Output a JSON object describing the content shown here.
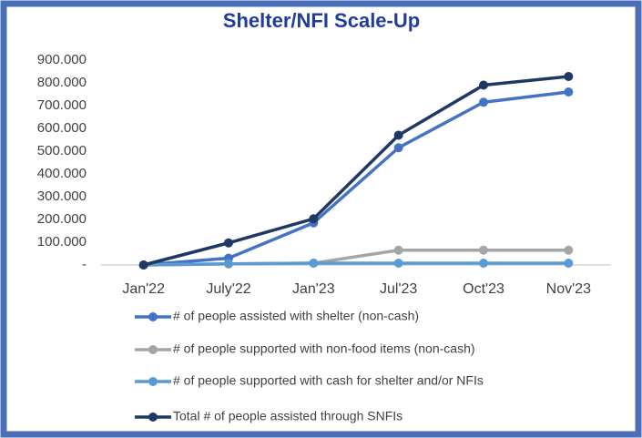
{
  "chart_data": {
    "type": "line",
    "title": "Shelter/NFI Scale-Up",
    "categories": [
      "Jan'22",
      "July'22",
      "Jan'23",
      "Jul'23",
      "Oct'23",
      "Nov'23"
    ],
    "series": [
      {
        "name": "# of people assisted with shelter (non-cash)",
        "color": "#4472c4",
        "values": [
          0,
          30000,
          185000,
          515000,
          715000,
          760000
        ]
      },
      {
        "name": "# of people supported with non-food items (non-cash)",
        "color": "#a5a5a5",
        "values": [
          0,
          5000,
          8000,
          65000,
          65000,
          65000
        ]
      },
      {
        "name": "# of people supported with cash for shelter and/or NFIs",
        "color": "#5b9bd5",
        "values": [
          0,
          5000,
          8000,
          8000,
          8000,
          8000
        ]
      },
      {
        "name": "Total # of people assisted through SNFIs",
        "color": "#203864",
        "values": [
          0,
          97000,
          203000,
          570000,
          790000,
          828000
        ]
      }
    ],
    "ylim": [
      0,
      900000
    ],
    "yticks": [
      {
        "value": 0,
        "label": "-"
      },
      {
        "value": 100000,
        "label": "100.000"
      },
      {
        "value": 200000,
        "label": "200.000"
      },
      {
        "value": 300000,
        "label": "300.000"
      },
      {
        "value": 400000,
        "label": "400.000"
      },
      {
        "value": 500000,
        "label": "500.000"
      },
      {
        "value": 600000,
        "label": "600.000"
      },
      {
        "value": 700000,
        "label": "700.000"
      },
      {
        "value": 800000,
        "label": "800.000"
      },
      {
        "value": 900000,
        "label": "900.000"
      }
    ],
    "grid": false
  }
}
